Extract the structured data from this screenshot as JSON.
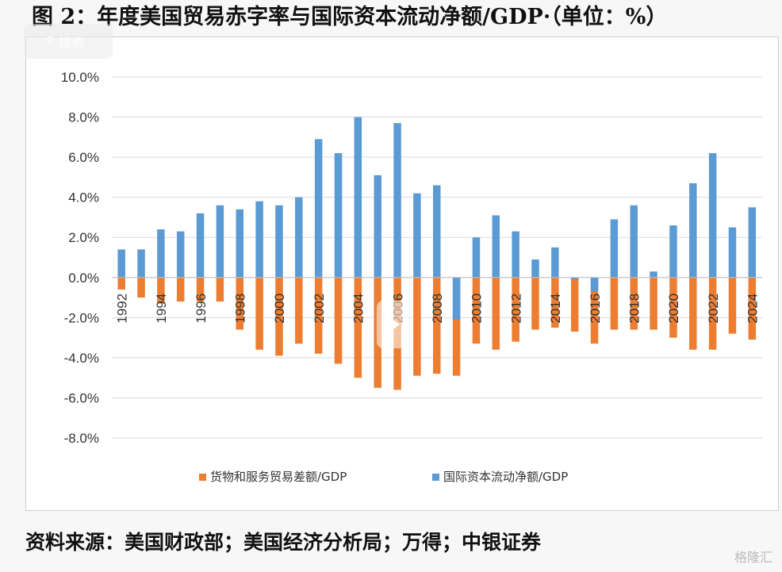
{
  "figure": {
    "title": "图 2：年度美国贸易赤字率与国际资本流动净额/GDP·（单位：%）",
    "source": "资料来源：美国财政部；美国经济分析局；万得；中银证券",
    "overlay_search_label": "搜索",
    "watermark": "格隆汇"
  },
  "chart_data": {
    "type": "bar",
    "title": "年度美国贸易赤字率与国际资本流动净额/GDP",
    "xlabel": "",
    "ylabel": "",
    "ylim": [
      -8,
      10
    ],
    "yticks": [
      10,
      8,
      6,
      4,
      2,
      0,
      -2,
      -4,
      -6,
      -8
    ],
    "ytick_labels": [
      "10.0%",
      "8.0%",
      "6.0%",
      "4.0%",
      "2.0%",
      "0.0%",
      "-2.0%",
      "-4.0%",
      "-6.0%",
      "-8.0%"
    ],
    "grid": true,
    "legend_position": "bottom",
    "categories": [
      1992,
      1993,
      1994,
      1995,
      1996,
      1997,
      1998,
      1999,
      2000,
      2001,
      2002,
      2003,
      2004,
      2005,
      2006,
      2007,
      2008,
      2009,
      2010,
      2011,
      2012,
      2013,
      2014,
      2015,
      2016,
      2017,
      2018,
      2019,
      2020,
      2021,
      2022,
      2023,
      2024
    ],
    "xtick_labels": [
      "1992",
      "1994",
      "1996",
      "1998",
      "2000",
      "2002",
      "2004",
      "2006",
      "2008",
      "2010",
      "2012",
      "2014",
      "2016",
      "2018",
      "2020",
      "2022",
      "2024"
    ],
    "series": [
      {
        "name": "货物和服务贸易差额/GDP",
        "color": "#ED7D31",
        "values": [
          -0.6,
          -1.0,
          -1.3,
          -1.2,
          -1.2,
          -1.2,
          -2.6,
          -3.6,
          -3.9,
          -3.3,
          -3.8,
          -4.3,
          -5.0,
          -5.5,
          -5.6,
          -4.9,
          -4.8,
          -4.9,
          -3.3,
          -3.6,
          -3.2,
          -2.6,
          -2.5,
          -2.7,
          -3.3,
          -2.6,
          -2.6,
          -2.6,
          -3.0,
          -3.6,
          -3.6,
          -2.8,
          -3.1
        ]
      },
      {
        "name": "国际资本流动净额/GDP",
        "color": "#5B9BD5",
        "values": [
          1.4,
          1.4,
          2.4,
          2.3,
          3.2,
          3.6,
          3.4,
          3.8,
          3.6,
          4.0,
          6.9,
          6.2,
          8.0,
          5.1,
          7.7,
          4.2,
          4.6,
          -2.1,
          2.0,
          3.1,
          2.3,
          0.9,
          1.5,
          -0.1,
          -0.7,
          2.9,
          3.6,
          0.3,
          2.6,
          4.7,
          6.2,
          2.5,
          3.5
        ]
      }
    ]
  }
}
